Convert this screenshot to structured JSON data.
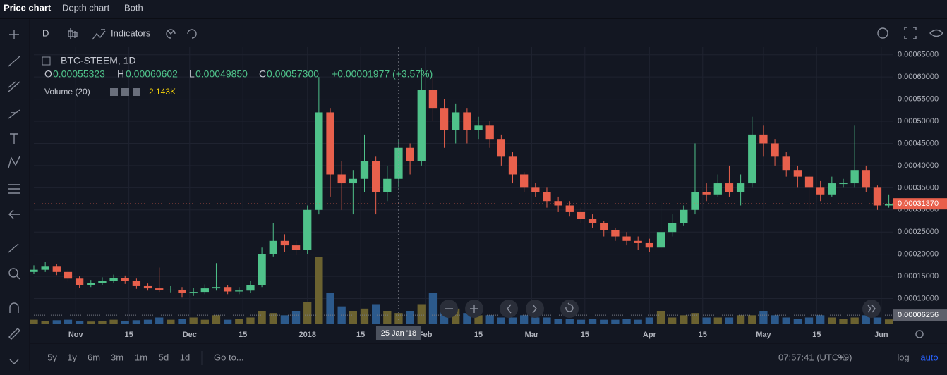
{
  "tabs": [
    "Price chart",
    "Depth chart",
    "Both"
  ],
  "toolbar": {
    "interval": "D",
    "indicators": "Indicators"
  },
  "legend": {
    "symbol": "BTC-STEEM, 1D",
    "open_label": "O",
    "open": "0.00055323",
    "high_label": "H",
    "high": "0.00060602",
    "low_label": "L",
    "low": "0.00049850",
    "close_label": "C",
    "close": "0.00057300",
    "change": "+0.00001977 (+3.57%)",
    "volume_name": "Volume (20)",
    "volume_value": "2.143K"
  },
  "chart_data": {
    "type": "candlestick",
    "x": [
      0,
      3,
      6,
      9,
      12,
      15,
      18,
      21,
      24,
      27,
      30,
      33,
      36,
      39,
      42,
      45,
      48,
      51,
      54,
      57,
      60,
      63,
      66,
      69,
      72,
      75,
      78,
      81,
      84,
      87,
      90,
      93,
      96,
      99,
      102,
      105,
      108,
      111,
      114,
      117,
      120,
      123,
      126,
      129,
      132,
      135,
      138,
      141,
      144,
      147,
      150,
      153,
      156,
      159,
      162,
      165,
      168,
      171,
      174,
      177,
      180,
      183,
      186,
      189,
      192,
      195,
      198,
      201,
      204,
      207,
      210,
      213,
      216,
      219,
      222,
      225
    ],
    "open": [
      0.00016,
      0.000165,
      0.000172,
      0.00016,
      0.000145,
      0.00013,
      0.000135,
      0.00014,
      0.000146,
      0.00014,
      0.000128,
      0.000123,
      0.00012,
      0.00012,
      0.000112,
      0.000115,
      0.000123,
      0.000126,
      0.000116,
      0.000118,
      0.00013,
      0.0002,
      0.00023,
      0.00022,
      0.00021,
      0.0003,
      0.00052,
      0.00038,
      0.00036,
      0.00037,
      0.00041,
      0.00034,
      0.00037,
      0.00044,
      0.00041,
      0.00057,
      0.00053,
      0.00048,
      0.00052,
      0.00048,
      0.00049,
      0.00046,
      0.00042,
      0.00038,
      0.00035,
      0.00034,
      0.00032,
      0.00031,
      0.000295,
      0.00028,
      0.00027,
      0.000255,
      0.00024,
      0.00023,
      0.000225,
      0.000215,
      0.00025,
      0.00027,
      0.0003,
      0.00034,
      0.000335,
      0.00036,
      0.00034,
      0.00036,
      0.00047,
      0.00045,
      0.00042,
      0.00039,
      0.000375,
      0.00035,
      0.000335,
      0.00036,
      0.00036,
      0.00039,
      0.00035,
      0.00031
    ],
    "high": [
      0.000175,
      0.000182,
      0.000178,
      0.000165,
      0.00015,
      0.000142,
      0.000148,
      0.000154,
      0.000152,
      0.000145,
      0.000134,
      0.00017,
      0.000128,
      0.000126,
      0.000124,
      0.000132,
      0.00018,
      0.00013,
      0.000126,
      0.00014,
      0.000215,
      0.00027,
      0.000245,
      0.00023,
      0.00031,
      0.0006,
      0.00053,
      0.00041,
      0.00039,
      0.00047,
      0.00042,
      0.0004,
      0.00046,
      0.00045,
      0.00062,
      0.0006,
      0.00055,
      0.00054,
      0.00053,
      0.00051,
      0.0005,
      0.00047,
      0.00043,
      0.000385,
      0.00036,
      0.00035,
      0.00033,
      0.00032,
      0.000305,
      0.00029,
      0.000275,
      0.00026,
      0.00025,
      0.00024,
      0.000235,
      0.00032,
      0.00029,
      0.00031,
      0.00045,
      0.00036,
      0.00038,
      0.0004,
      0.00038,
      0.00051,
      0.00049,
      0.00046,
      0.00043,
      0.0004,
      0.00038,
      0.000365,
      0.000375,
      0.00037,
      0.00049,
      0.0004,
      0.000355,
      0.000335
    ],
    "low": [
      0.000155,
      0.00016,
      0.000153,
      0.000138,
      0.000124,
      0.000126,
      0.00013,
      0.000136,
      0.000133,
      0.000122,
      0.000118,
      0.000115,
      0.000114,
      0.000102,
      0.000106,
      0.00011,
      0.000118,
      0.00011,
      0.00011,
      0.000113,
      0.000126,
      0.000195,
      0.000205,
      0.000198,
      0.0002,
      0.00029,
      0.00033,
      0.0003,
      0.00029,
      0.00034,
      0.00029,
      0.00032,
      0.00035,
      0.00038,
      0.0004,
      0.0005,
      0.00044,
      0.00045,
      0.00045,
      0.00046,
      0.00044,
      0.0004,
      0.00036,
      0.00034,
      0.00033,
      0.000305,
      0.000295,
      0.000285,
      0.00027,
      0.00026,
      0.00024,
      0.00023,
      0.00022,
      0.00021,
      0.000205,
      0.00021,
      0.00024,
      0.000265,
      0.00029,
      0.00032,
      0.00033,
      0.00033,
      0.00031,
      0.00035,
      0.00042,
      0.0004,
      0.000375,
      0.00035,
      0.0003,
      0.00032,
      0.00033,
      0.00035,
      0.00035,
      0.00034,
      0.0003,
      0.000305
    ],
    "close": [
      0.000165,
      0.000172,
      0.00016,
      0.000145,
      0.00013,
      0.000135,
      0.00014,
      0.000146,
      0.00014,
      0.000128,
      0.000123,
      0.00012,
      0.00012,
      0.000112,
      0.000115,
      0.000123,
      0.000126,
      0.000116,
      0.000118,
      0.00013,
      0.0002,
      0.00023,
      0.00022,
      0.00021,
      0.0003,
      0.00052,
      0.00038,
      0.00036,
      0.00037,
      0.00041,
      0.00034,
      0.00037,
      0.00044,
      0.00041,
      0.00057,
      0.00053,
      0.00048,
      0.00052,
      0.00048,
      0.00049,
      0.00046,
      0.00042,
      0.00038,
      0.00035,
      0.00034,
      0.00032,
      0.00031,
      0.000295,
      0.00028,
      0.00027,
      0.000255,
      0.00024,
      0.00023,
      0.000225,
      0.000215,
      0.00025,
      0.00027,
      0.0003,
      0.00034,
      0.000335,
      0.00036,
      0.00034,
      0.00036,
      0.00047,
      0.00045,
      0.00042,
      0.00039,
      0.000375,
      0.00035,
      0.000335,
      0.00036,
      0.00036,
      0.00039,
      0.00035,
      0.00031,
      0.0003137
    ],
    "volume": [
      2,
      1.5,
      1.8,
      2,
      1.5,
      1.2,
      1.5,
      2,
      1.5,
      1.8,
      2,
      3,
      2,
      2.5,
      3,
      2,
      4,
      2,
      2.5,
      3,
      6,
      5,
      4,
      6,
      10,
      30,
      14,
      8,
      6,
      7,
      9,
      6,
      5,
      6,
      9,
      14,
      8,
      7,
      5,
      4,
      4,
      3,
      3,
      4,
      3,
      3,
      2.5,
      2.5,
      2,
      2.5,
      2,
      2,
      2.5,
      2,
      3,
      6,
      3,
      4,
      5,
      3,
      3,
      3,
      4,
      4,
      6,
      4,
      3,
      2.5,
      3,
      4,
      3,
      2.5,
      3,
      4,
      3,
      2.143
    ],
    "up_color": "#4fc28a",
    "down_color": "#e8604c",
    "volume_up_color": "#6b6230",
    "volume_down_color": "#2c5a8c",
    "xlim": [
      0,
      226
    ],
    "ylim": [
      5e-05,
      0.000667
    ],
    "xticks": [
      {
        "value": 11,
        "label": "Nov"
      },
      {
        "value": 25,
        "label": "15"
      },
      {
        "value": 41,
        "label": "Dec"
      },
      {
        "value": 55,
        "label": "15"
      },
      {
        "value": 72,
        "label": "2018"
      },
      {
        "value": 86,
        "label": "15"
      },
      {
        "value": 103,
        "label": "Feb"
      },
      {
        "value": 117,
        "label": "15"
      },
      {
        "value": 131,
        "label": "Mar"
      },
      {
        "value": 145,
        "label": "15"
      },
      {
        "value": 162,
        "label": "Apr"
      },
      {
        "value": 176,
        "label": "15"
      },
      {
        "value": 192,
        "label": "May"
      },
      {
        "value": 206,
        "label": "15"
      },
      {
        "value": 223,
        "label": "Jun"
      }
    ],
    "yticks": [
      {
        "value": 0.0001,
        "label": "0.00010000"
      },
      {
        "value": 0.00015,
        "label": "0.00015000"
      },
      {
        "value": 0.0002,
        "label": "0.00020000"
      },
      {
        "value": 0.00025,
        "label": "0.00025000"
      },
      {
        "value": 0.0003,
        "label": "0.00030000"
      },
      {
        "value": 0.00035,
        "label": "0.00035000"
      },
      {
        "value": 0.0004,
        "label": "0.00040000"
      },
      {
        "value": 0.00045,
        "label": "0.00045000"
      },
      {
        "value": 0.0005,
        "label": "0.00050000"
      },
      {
        "value": 0.00055,
        "label": "0.00055000"
      },
      {
        "value": 0.0006,
        "label": "0.00060000"
      },
      {
        "value": 0.00065,
        "label": "0.00065000"
      }
    ],
    "grid": true,
    "last_price": {
      "value": 0.0003137,
      "label": "0.00031370"
    },
    "volume_level": {
      "value": 6.256e-05,
      "label": "0.00006256"
    },
    "crosshair": {
      "x": 96,
      "label": "25 Jan '18"
    }
  },
  "ranges": [
    "5y",
    "1y",
    "6m",
    "3m",
    "1m",
    "5d",
    "1d"
  ],
  "goto": "Go to...",
  "clock": "07:57:41 (UTC+9)",
  "scale_options": [
    "%",
    "log",
    "auto"
  ]
}
